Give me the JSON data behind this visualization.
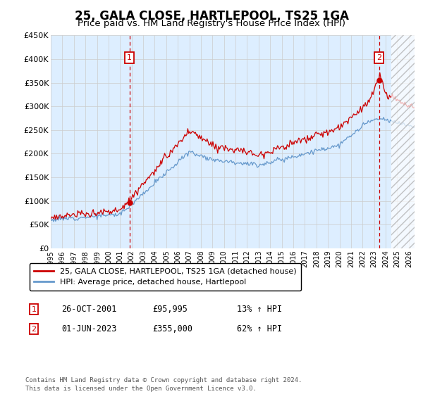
{
  "title": "25, GALA CLOSE, HARTLEPOOL, TS25 1GA",
  "subtitle": "Price paid vs. HM Land Registry's House Price Index (HPI)",
  "title_fontsize": 12,
  "subtitle_fontsize": 10,
  "ylim": [
    0,
    450000
  ],
  "xlim_start": 1995.0,
  "xlim_end": 2026.5,
  "yticks": [
    0,
    50000,
    100000,
    150000,
    200000,
    250000,
    300000,
    350000,
    400000,
    450000
  ],
  "ytick_labels": [
    "£0",
    "£50K",
    "£100K",
    "£150K",
    "£200K",
    "£250K",
    "£300K",
    "£350K",
    "£400K",
    "£450K"
  ],
  "xticks": [
    1995,
    1996,
    1997,
    1998,
    1999,
    2000,
    2001,
    2002,
    2003,
    2004,
    2005,
    2006,
    2007,
    2008,
    2009,
    2010,
    2011,
    2012,
    2013,
    2014,
    2015,
    2016,
    2017,
    2018,
    2019,
    2020,
    2021,
    2022,
    2023,
    2024,
    2025,
    2026
  ],
  "grid_color": "#cccccc",
  "bg_color": "#ddeeff",
  "red_line_color": "#cc0000",
  "blue_line_color": "#6699cc",
  "sale1_x": 2001.82,
  "sale1_y": 95995,
  "sale2_x": 2023.42,
  "sale2_y": 355000,
  "hatch_start": 2024.5,
  "legend_line1": "25, GALA CLOSE, HARTLEPOOL, TS25 1GA (detached house)",
  "legend_line2": "HPI: Average price, detached house, Hartlepool",
  "note1_box_label": "1",
  "note1_date": "26-OCT-2001",
  "note1_price": "£95,995",
  "note1_hpi": "13% ↑ HPI",
  "note2_box_label": "2",
  "note2_date": "01-JUN-2023",
  "note2_price": "£355,000",
  "note2_hpi": "62% ↑ HPI",
  "footer": "Contains HM Land Registry data © Crown copyright and database right 2024.\nThis data is licensed under the Open Government Licence v3.0."
}
